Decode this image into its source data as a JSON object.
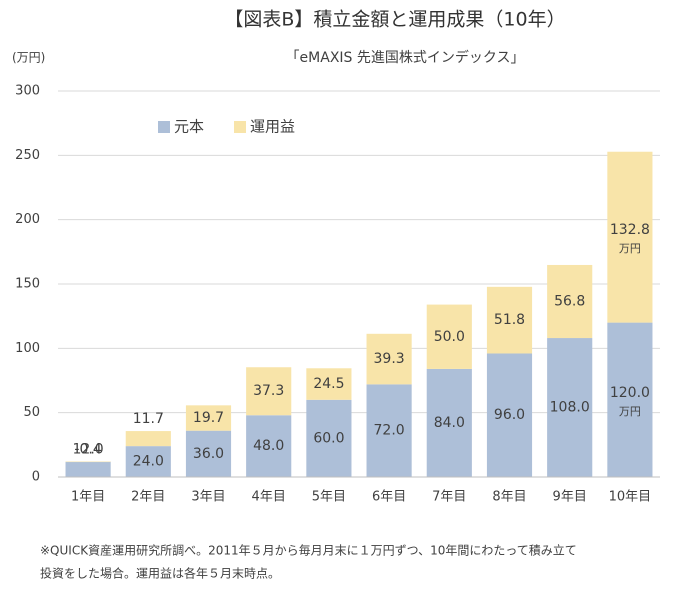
{
  "chart_data": {
    "type": "stacked_bar",
    "title": "【図表B】積立金額と運用成果（10年）",
    "subtitle": "「eMAXIS 先進国株式インデックス」",
    "y_unit_label": "(万円)",
    "value_unit": "万円",
    "categories": [
      "1年目",
      "2年目",
      "3年目",
      "4年目",
      "5年目",
      "6年目",
      "7年目",
      "8年目",
      "9年目",
      "10年目"
    ],
    "series": [
      {
        "name": "元本",
        "color": "#adbfd8",
        "values": [
          12,
          24,
          36,
          48,
          60,
          72,
          84,
          96,
          108,
          120
        ],
        "value_labels": [
          "12.0",
          "24.0",
          "36.0",
          "48.0",
          "60.0",
          "72.0",
          "84.0",
          "96.0",
          "108.0",
          "120.0"
        ]
      },
      {
        "name": "運用益",
        "color": "#f8e4a9",
        "values": [
          -0.4,
          11.7,
          19.7,
          37.3,
          24.5,
          39.3,
          50,
          51.8,
          56.8,
          132.8
        ],
        "value_labels": [
          "-0.4",
          "11.7",
          "19.7",
          "37.3",
          "24.5",
          "39.3",
          "50.0",
          "51.8",
          "56.8",
          "132.8"
        ]
      }
    ],
    "ylim": [
      0,
      300
    ],
    "yticks": [
      0,
      50,
      100,
      150,
      200,
      250,
      300
    ],
    "grid": true,
    "legend": "top-left",
    "footnote": [
      "※QUICK資産運用研究所調べ。2011年５月から毎月月末に１万円ずつ、10年間にわたって積み立て",
      "投資をした場合。運用益は各年５月末時点。"
    ]
  }
}
